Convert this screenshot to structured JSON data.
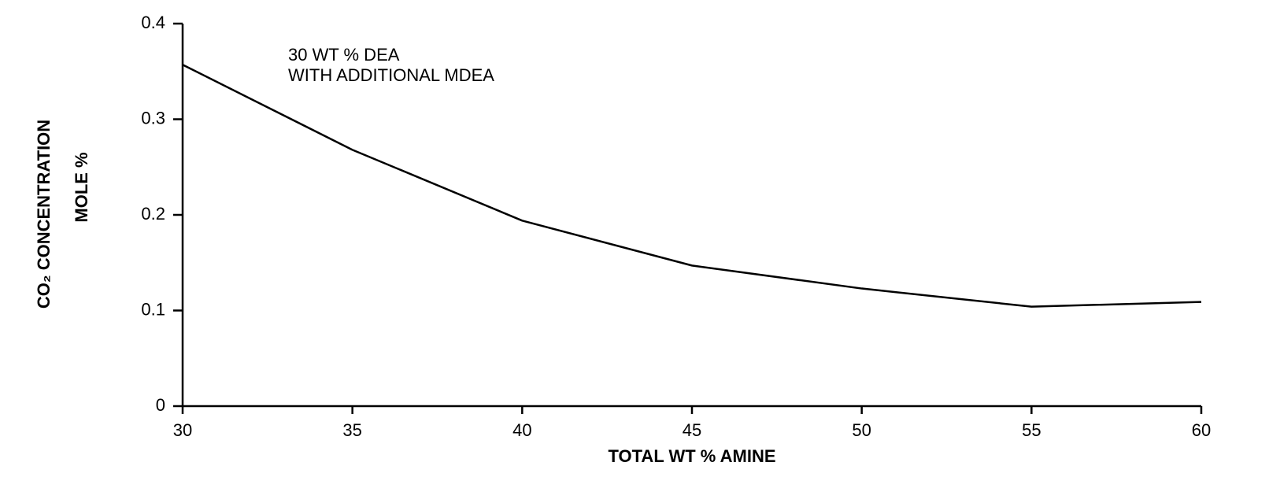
{
  "chart_data": {
    "type": "line",
    "xlabel": "TOTAL WT % AMINE",
    "ylabel": [
      "CO₂ CONCENTRATION",
      "MOLE %"
    ],
    "annotations": [
      "30 WT % DEA",
      "WITH ADDITIONAL MDEA"
    ],
    "x": [
      30,
      35,
      40,
      45,
      50,
      55,
      60
    ],
    "series": [
      {
        "color": "#000000",
        "values": [
          0.357,
          0.268,
          0.194,
          0.147,
          0.123,
          0.104,
          0.109
        ]
      }
    ],
    "xlim": [
      30,
      60
    ],
    "xticks": [
      30,
      35,
      40,
      45,
      50,
      55,
      60
    ],
    "ylim": [
      0,
      0.4
    ],
    "yticks": [
      0,
      0.1,
      0.2,
      0.3,
      0.4
    ],
    "grid": false
  }
}
